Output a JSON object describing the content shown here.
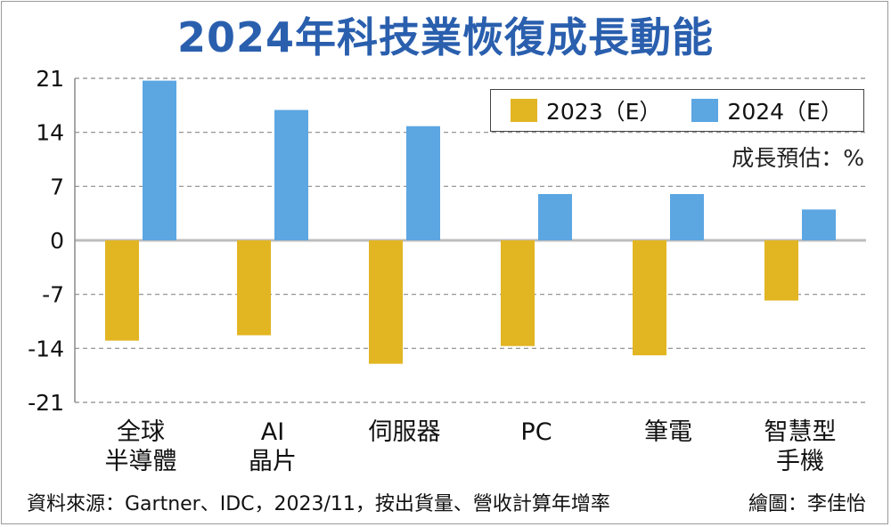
{
  "title": "2024年科技業恢復成長動能",
  "unit_note": "成長預估：%",
  "source_note": "資料來源：Gartner、IDC，2023/11，按出貨量、營收計算年增率",
  "credit": "繪圖：李佳怡",
  "legend": {
    "placement": "top-right",
    "items": [
      {
        "label": "2023（E）",
        "color": "#e2b523"
      },
      {
        "label": "2024（E）",
        "color": "#5ca6e2"
      }
    ]
  },
  "chart_data": {
    "type": "bar",
    "title": "2024年科技業恢復成長動能",
    "categories": [
      [
        "全球",
        "半導體"
      ],
      [
        "AI",
        "晶片"
      ],
      [
        "伺服器"
      ],
      [
        "PC"
      ],
      [
        "筆電"
      ],
      [
        "智慧型",
        "手機"
      ]
    ],
    "series": [
      {
        "name": "2023（E）",
        "color": "#e2b523",
        "values": [
          -13,
          -12.3,
          -16,
          -13.7,
          -14.9,
          -7.8
        ]
      },
      {
        "name": "2024（E）",
        "color": "#5ca6e2",
        "values": [
          20.7,
          16.9,
          14.8,
          6,
          6,
          4
        ]
      }
    ],
    "ylim": [
      -21,
      21
    ],
    "yticks": [
      21,
      14,
      7,
      0,
      -7,
      -14,
      -21
    ],
    "grid": true,
    "unit": "成長預估：%"
  }
}
